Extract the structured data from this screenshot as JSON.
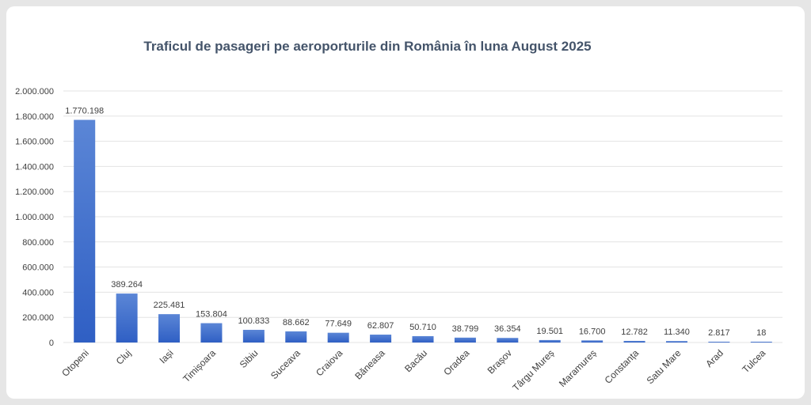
{
  "chart_data": {
    "type": "bar",
    "title": "Traficul de pasageri pe aeroporturile din România în luna August 2025",
    "categories": [
      "Otopeni",
      "Cluj",
      "Iași",
      "Timișoara",
      "Sibiu",
      "Suceava",
      "Craiova",
      "Băneasa",
      "Bacău",
      "Oradea",
      "Brașov",
      "Târgu Mureș",
      "Maramureș",
      "Constanța",
      "Satu Mare",
      "Arad",
      "Tulcea"
    ],
    "values": [
      1770198,
      389264,
      225481,
      153804,
      100833,
      88662,
      77649,
      62807,
      50710,
      38799,
      36354,
      19501,
      16700,
      12782,
      11340,
      2817,
      18
    ],
    "data_labels": [
      "1.770.198",
      "389.264",
      "225.481",
      "153.804",
      "100.833",
      "88.662",
      "77.649",
      "62.807",
      "50.710",
      "38.799",
      "36.354",
      "19.501",
      "16.700",
      "12.782",
      "11.340",
      "2.817",
      "18"
    ],
    "ylim": [
      0,
      2000000
    ],
    "y_ticks": [
      0,
      200000,
      400000,
      600000,
      800000,
      1000000,
      1200000,
      1400000,
      1600000,
      1800000,
      2000000
    ],
    "y_tick_labels": [
      "0",
      "200.000",
      "400.000",
      "600.000",
      "800.000",
      "1.000.000",
      "1.200.000",
      "1.400.000",
      "1.600.000",
      "1.800.000",
      "2.000.000"
    ],
    "xlabel": "",
    "ylabel": "",
    "grid": true,
    "legend": "none",
    "bar_color_top": "#5b86d6",
    "bar_color_bottom": "#2f5fc4"
  }
}
